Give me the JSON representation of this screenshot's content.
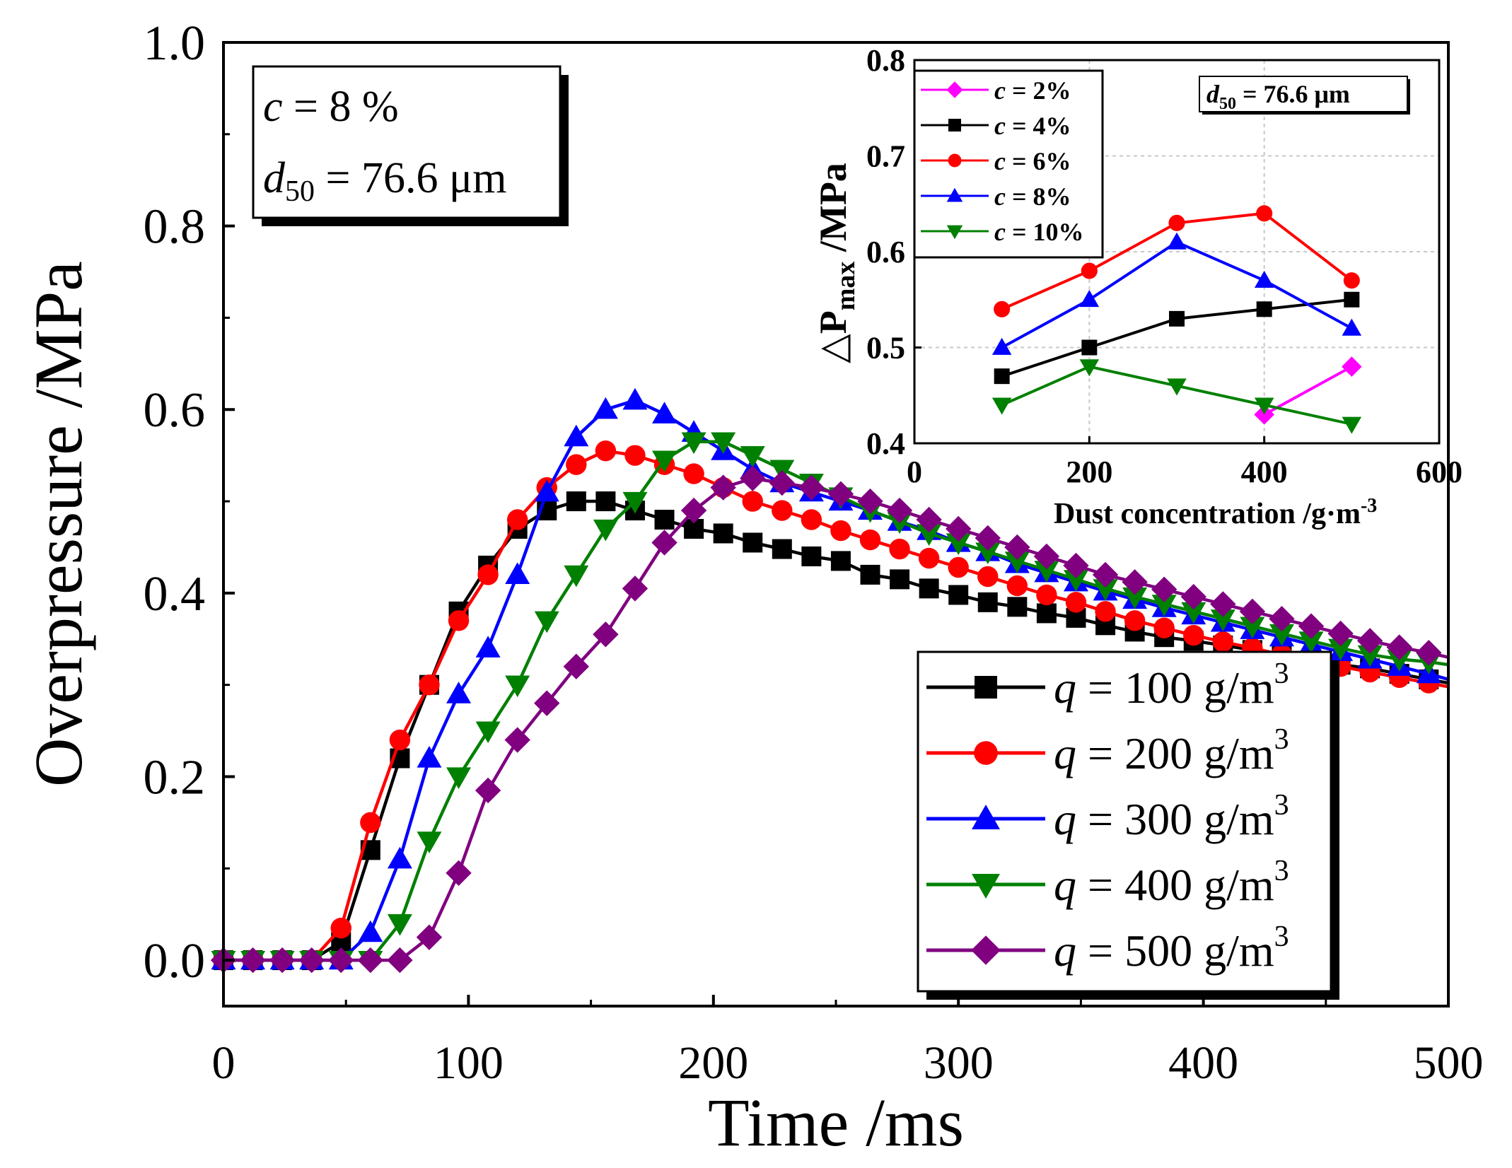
{
  "chart_data": [
    {
      "id": "main",
      "type": "line",
      "xlabel": "Time /ms",
      "ylabel": "Overpressure /MPa",
      "xlim": [
        0,
        500
      ],
      "ylim": [
        -0.05,
        1.0
      ],
      "xticks": [
        0,
        100,
        200,
        300,
        400,
        500
      ],
      "yticks": [
        0.0,
        0.2,
        0.4,
        0.6,
        0.8,
        1.0
      ],
      "xtick_labels": [
        "0",
        "100",
        "200",
        "300",
        "400",
        "500"
      ],
      "ytick_labels": [
        "0.0",
        "0.2",
        "0.4",
        "0.6",
        "0.8",
        "1.0"
      ],
      "annotation": {
        "c_label": "c",
        "c_value": " = 8 %",
        "d_label": "d",
        "d_sub": "50",
        "d_value": " = 76.6 μm"
      },
      "legend_position": "bottom-right",
      "series": [
        {
          "name": "q = 100 g/m3",
          "q_prefix": "q",
          "q_rest": " = 100 g/m",
          "sup": "3",
          "color": "#000000",
          "marker": "square",
          "x": [
            0,
            12,
            24,
            36,
            48,
            60,
            72,
            84,
            96,
            108,
            120,
            132,
            144,
            156,
            168,
            180,
            192,
            204,
            216,
            228,
            240,
            252,
            264,
            276,
            288,
            300,
            312,
            324,
            336,
            348,
            360,
            372,
            384,
            396,
            408,
            420,
            432,
            444,
            456,
            468,
            480,
            492,
            500
          ],
          "values": [
            0,
            0,
            0,
            0,
            0.02,
            0.12,
            0.22,
            0.3,
            0.38,
            0.43,
            0.47,
            0.49,
            0.5,
            0.5,
            0.49,
            0.48,
            0.47,
            0.465,
            0.455,
            0.448,
            0.44,
            0.435,
            0.42,
            0.415,
            0.405,
            0.398,
            0.39,
            0.385,
            0.378,
            0.373,
            0.365,
            0.358,
            0.352,
            0.348,
            0.343,
            0.338,
            0.332,
            0.326,
            0.322,
            0.318,
            0.312,
            0.306,
            0.302
          ]
        },
        {
          "name": "q = 200 g/m3",
          "q_prefix": "q",
          "q_rest": " = 200 g/m",
          "sup": "3",
          "color": "#ff0000",
          "marker": "circle",
          "x": [
            0,
            12,
            24,
            36,
            48,
            60,
            72,
            84,
            96,
            108,
            120,
            132,
            144,
            156,
            168,
            180,
            192,
            204,
            216,
            228,
            240,
            252,
            264,
            276,
            288,
            300,
            312,
            324,
            336,
            348,
            360,
            372,
            384,
            396,
            408,
            420,
            432,
            444,
            456,
            468,
            480,
            492,
            500
          ],
          "values": [
            0,
            0,
            0,
            0,
            0.035,
            0.15,
            0.24,
            0.3,
            0.37,
            0.42,
            0.48,
            0.515,
            0.54,
            0.555,
            0.55,
            0.54,
            0.53,
            0.515,
            0.5,
            0.49,
            0.48,
            0.468,
            0.458,
            0.448,
            0.438,
            0.428,
            0.418,
            0.408,
            0.398,
            0.39,
            0.38,
            0.37,
            0.362,
            0.354,
            0.347,
            0.34,
            0.333,
            0.327,
            0.32,
            0.314,
            0.308,
            0.302,
            0.298
          ]
        },
        {
          "name": "q = 300 g/m3",
          "q_prefix": "q",
          "q_rest": " = 300 g/m",
          "sup": "3",
          "color": "#0000ff",
          "marker": "triangle-up",
          "x": [
            0,
            12,
            24,
            36,
            48,
            60,
            72,
            84,
            96,
            108,
            120,
            132,
            144,
            156,
            168,
            180,
            192,
            204,
            216,
            228,
            240,
            252,
            264,
            276,
            288,
            300,
            312,
            324,
            336,
            348,
            360,
            372,
            384,
            396,
            408,
            420,
            432,
            444,
            456,
            468,
            480,
            492,
            500
          ],
          "values": [
            0,
            0,
            0,
            0,
            0,
            0.03,
            0.11,
            0.22,
            0.29,
            0.34,
            0.42,
            0.51,
            0.57,
            0.6,
            0.61,
            0.595,
            0.575,
            0.555,
            0.535,
            0.52,
            0.51,
            0.5,
            0.49,
            0.478,
            0.468,
            0.455,
            0.445,
            0.432,
            0.422,
            0.412,
            0.402,
            0.393,
            0.384,
            0.376,
            0.368,
            0.36,
            0.352,
            0.344,
            0.336,
            0.328,
            0.32,
            0.312,
            0.306
          ]
        },
        {
          "name": "q = 400 g/m3",
          "q_prefix": "q",
          "q_rest": " = 400 g/m",
          "sup": "3",
          "color": "#008000",
          "marker": "triangle-down",
          "x": [
            0,
            12,
            24,
            36,
            48,
            60,
            72,
            84,
            96,
            108,
            120,
            132,
            144,
            156,
            168,
            180,
            192,
            204,
            216,
            228,
            240,
            252,
            264,
            276,
            288,
            300,
            312,
            324,
            336,
            348,
            360,
            372,
            384,
            396,
            408,
            420,
            432,
            444,
            456,
            468,
            480,
            492,
            500
          ],
          "values": [
            0,
            0,
            0,
            0,
            0,
            0,
            0.04,
            0.13,
            0.2,
            0.25,
            0.3,
            0.37,
            0.42,
            0.47,
            0.5,
            0.545,
            0.565,
            0.565,
            0.55,
            0.535,
            0.52,
            0.505,
            0.49,
            0.478,
            0.465,
            0.455,
            0.445,
            0.435,
            0.425,
            0.415,
            0.405,
            0.396,
            0.388,
            0.38,
            0.372,
            0.364,
            0.356,
            0.348,
            0.34,
            0.333,
            0.328,
            0.325,
            0.322
          ]
        },
        {
          "name": "q = 500 g/m3",
          "q_prefix": "q",
          "q_rest": " = 500 g/m",
          "sup": "3",
          "color": "#800080",
          "marker": "diamond",
          "x": [
            0,
            12,
            24,
            36,
            48,
            60,
            72,
            84,
            96,
            108,
            120,
            132,
            144,
            156,
            168,
            180,
            192,
            204,
            216,
            228,
            240,
            252,
            264,
            276,
            288,
            300,
            312,
            324,
            336,
            348,
            360,
            372,
            384,
            396,
            408,
            420,
            432,
            444,
            456,
            468,
            480,
            492,
            500
          ],
          "values": [
            0,
            0,
            0,
            0,
            0,
            0,
            0,
            0.025,
            0.095,
            0.185,
            0.24,
            0.28,
            0.32,
            0.355,
            0.405,
            0.455,
            0.49,
            0.515,
            0.525,
            0.52,
            0.515,
            0.508,
            0.5,
            0.49,
            0.48,
            0.47,
            0.46,
            0.45,
            0.44,
            0.43,
            0.42,
            0.412,
            0.404,
            0.396,
            0.388,
            0.38,
            0.372,
            0.364,
            0.356,
            0.348,
            0.341,
            0.335,
            0.33
          ]
        }
      ]
    },
    {
      "id": "inset",
      "type": "line",
      "xlabel": "Dust concentration /g·m",
      "xlabel_sup": "-3",
      "ylabel_prefix": "△P",
      "ylabel_sub": "max",
      "ylabel_suffix": " /MPa",
      "xlim": [
        0,
        600
      ],
      "ylim": [
        0.4,
        0.8
      ],
      "xticks": [
        0,
        200,
        400,
        600
      ],
      "yticks": [
        0.4,
        0.5,
        0.6,
        0.7,
        0.8
      ],
      "xtick_labels": [
        "0",
        "200",
        "400",
        "600"
      ],
      "ytick_labels": [
        "0.4",
        "0.5",
        "0.6",
        "0.7",
        "0.8"
      ],
      "grid": true,
      "annotation": {
        "d_label": "d",
        "d_sub": "50",
        "d_value": " = 76.6 μm"
      },
      "legend_position": "top-left",
      "series": [
        {
          "name": "c = 2%",
          "c_prefix": "c",
          "c_rest": " = 2%",
          "color": "#ff00ff",
          "marker": "diamond",
          "x": [
            400,
            500
          ],
          "values": [
            0.43,
            0.48
          ]
        },
        {
          "name": "c = 4%",
          "c_prefix": "c",
          "c_rest": " = 4%",
          "color": "#000000",
          "marker": "square",
          "x": [
            100,
            200,
            300,
            400,
            500
          ],
          "values": [
            0.47,
            0.5,
            0.53,
            0.54,
            0.55
          ]
        },
        {
          "name": "c = 6%",
          "c_prefix": "c",
          "c_rest": " = 6%",
          "color": "#ff0000",
          "marker": "circle",
          "x": [
            100,
            200,
            300,
            400,
            500
          ],
          "values": [
            0.54,
            0.58,
            0.63,
            0.64,
            0.57
          ]
        },
        {
          "name": "c = 8%",
          "c_prefix": "c",
          "c_rest": " = 8%",
          "color": "#0000ff",
          "marker": "triangle-up",
          "x": [
            100,
            200,
            300,
            400,
            500
          ],
          "values": [
            0.5,
            0.55,
            0.61,
            0.57,
            0.52
          ]
        },
        {
          "name": "c = 10%",
          "c_prefix": "c",
          "c_rest": " = 10%",
          "color": "#008000",
          "marker": "triangle-down",
          "x": [
            100,
            200,
            300,
            400,
            500
          ],
          "values": [
            0.44,
            0.48,
            0.46,
            0.44,
            0.42
          ]
        }
      ]
    }
  ]
}
